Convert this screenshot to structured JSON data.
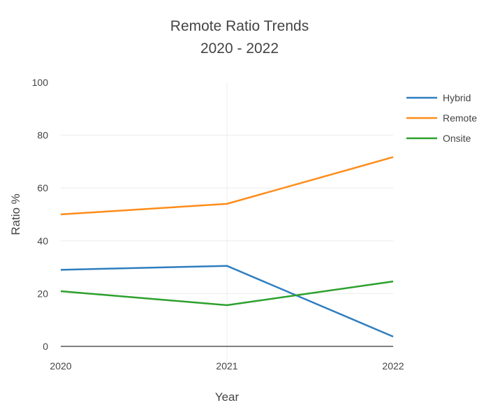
{
  "chart_data": {
    "type": "line",
    "title": "Remote Ratio Trends",
    "subtitle": "2020 - 2022",
    "xlabel": "Year",
    "ylabel": "Ratio %",
    "x": [
      "2020",
      "2021",
      "2022"
    ],
    "ylim": [
      0,
      100
    ],
    "yticks": [
      "0",
      "20",
      "40",
      "60",
      "80",
      "100"
    ],
    "grid": true,
    "legend_position": "top-right",
    "series": [
      {
        "name": "Hybrid",
        "color": "#2e7ebf",
        "values": [
          29,
          30.5,
          3.7
        ]
      },
      {
        "name": "Remote",
        "color": "#ff8c1a",
        "values": [
          50,
          54,
          71.7
        ]
      },
      {
        "name": "Onsite",
        "color": "#2ca02c",
        "values": [
          20.9,
          15.6,
          24.6
        ]
      }
    ]
  }
}
